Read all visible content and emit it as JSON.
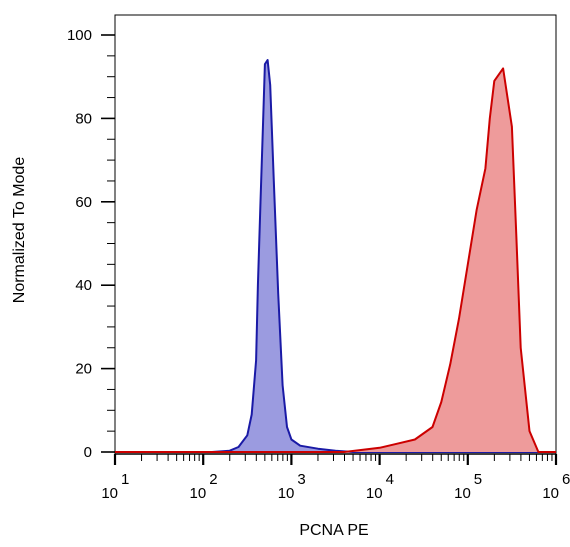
{
  "chart_data": {
    "type": "area",
    "xlabel": "PCNA PE",
    "ylabel": "Normalized To Mode",
    "x_scale": "log",
    "xlim": [
      1,
      6
    ],
    "ylim": [
      0,
      100
    ],
    "x_ticks": [
      {
        "base": "10",
        "exp": "1",
        "value": 1
      },
      {
        "base": "10",
        "exp": "2",
        "value": 2
      },
      {
        "base": "10",
        "exp": "3",
        "value": 3
      },
      {
        "base": "10",
        "exp": "4",
        "value": 4
      },
      {
        "base": "10",
        "exp": "5",
        "value": 5
      },
      {
        "base": "10",
        "exp": "6",
        "value": 6
      }
    ],
    "y_ticks": [
      "0",
      "20",
      "40",
      "60",
      "80",
      "100"
    ],
    "series": [
      {
        "color": "#1a1aa6",
        "fill": "#9b9be0",
        "log10_x": [
          1.0,
          2.1,
          2.3,
          2.4,
          2.5,
          2.55,
          2.6,
          2.62,
          2.65,
          2.68,
          2.7,
          2.73,
          2.76,
          2.8,
          2.85,
          2.9,
          2.95,
          3.0,
          3.1,
          3.3,
          3.5,
          3.7,
          6.0
        ],
        "y": [
          0,
          0,
          0.3,
          1.2,
          4,
          9,
          22,
          40,
          60,
          80,
          93,
          94,
          88,
          65,
          38,
          16,
          6,
          3,
          1.5,
          0.8,
          0.3,
          0,
          0
        ]
      },
      {
        "color": "#cc0000",
        "fill": "#ee9b9b",
        "log10_x": [
          1.0,
          3.6,
          3.8,
          4.0,
          4.2,
          4.4,
          4.6,
          4.7,
          4.8,
          4.9,
          5.0,
          5.1,
          5.2,
          5.25,
          5.3,
          5.4,
          5.5,
          5.55,
          5.6,
          5.7,
          5.8,
          6.0
        ],
        "y": [
          0,
          0,
          0.5,
          1.0,
          2.0,
          3.0,
          6.0,
          12,
          21,
          32,
          45,
          58,
          68,
          80,
          89,
          92,
          78,
          52,
          25,
          5,
          0,
          0
        ]
      }
    ]
  }
}
